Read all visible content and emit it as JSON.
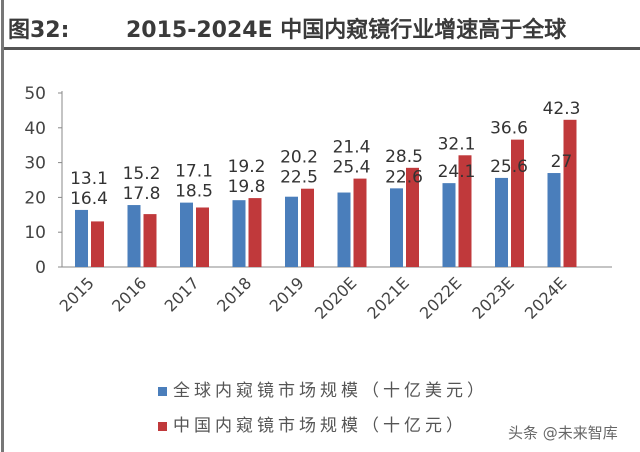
{
  "header": {
    "figure_no": "图32:",
    "title": "2015-2024E 中国内窥镜行业增速高于全球"
  },
  "watermark": "头条 @未来智库",
  "chart_data": {
    "type": "bar",
    "title": "2015-2024E 中国内窥镜行业增速高于全球",
    "categories": [
      "2015",
      "2016",
      "2017",
      "2018",
      "2019",
      "2020E",
      "2021E",
      "2022E",
      "2023E",
      "2024E"
    ],
    "series": [
      {
        "name": "全球内窥镜市场规模（十亿美元）",
        "color": "#4a7ebb",
        "values": [
          16.4,
          17.8,
          18.5,
          19.2,
          20.2,
          21.4,
          22.6,
          24.1,
          25.6,
          27
        ]
      },
      {
        "name": "中国内窥镜市场规模（十亿元）",
        "color": "#c0393b",
        "values": [
          13.1,
          15.2,
          17.1,
          19.8,
          22.5,
          25.4,
          28.5,
          32.1,
          36.6,
          42.3
        ]
      }
    ],
    "ylim": [
      0,
      50
    ],
    "yticks": [
      0,
      10,
      20,
      30,
      40,
      50
    ],
    "grid": false,
    "legend": "bottom-left",
    "xlabel": "",
    "ylabel": ""
  }
}
